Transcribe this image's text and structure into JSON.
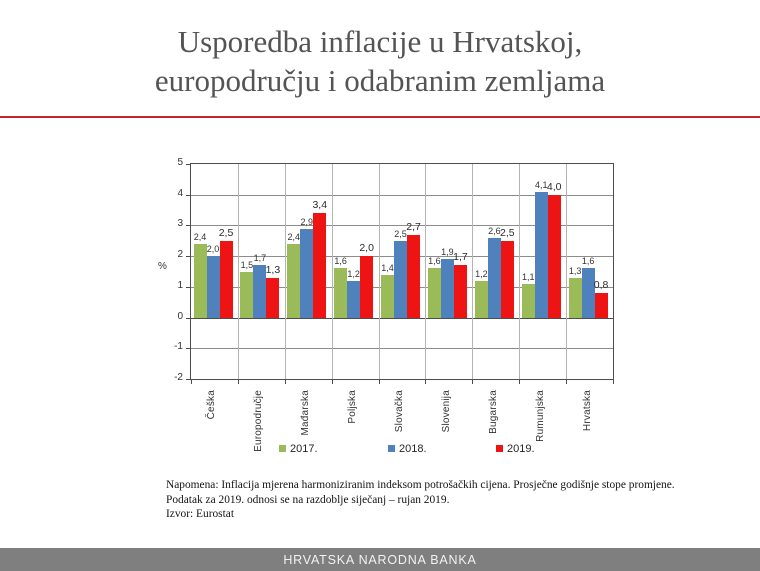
{
  "slide": {
    "title_line1": "Usporedba inflacije u Hrvatskoj,",
    "title_line2": "europodručju i odabranim zemljama",
    "footer_bar_text": "HRVATSKA NARODNA BANKA"
  },
  "notes": {
    "line1": "Napomena: Inflacija mjerena  harmoniziranim indeksom potrošačkih cijena. Prosječne godišnje stope promjene.",
    "line2": "Podatak za 2019. odnosi se na razdoblje siječanj – rujan 2019.",
    "line3": "Izvor: Eurostat"
  },
  "colors": {
    "series_2017": "#9BBB59",
    "series_2018": "#4F81BD",
    "series_2019": "#EE1414",
    "divider_red": "#BE282D",
    "footer_bg": "#7F7F7F",
    "title_gray": "#545454"
  },
  "chart_data": {
    "type": "bar",
    "title": "",
    "xlabel": "",
    "ylabel": "%",
    "ylim": [
      -2,
      5
    ],
    "ytick_step": 1,
    "grid": true,
    "legend_position": "bottom",
    "decimal_separator": ",",
    "categories": [
      "Češka",
      "Europodručje",
      "Mađarska",
      "Poljska",
      "Slovačka",
      "Slovenija",
      "Bugarska",
      "Rumunjska",
      "Hrvatska"
    ],
    "series": [
      {
        "name": "2017.",
        "color_key": "series_2017",
        "values": [
          2.4,
          1.5,
          2.4,
          1.6,
          1.4,
          1.6,
          1.2,
          1.1,
          1.3
        ]
      },
      {
        "name": "2018.",
        "color_key": "series_2018",
        "values": [
          2.0,
          1.7,
          2.9,
          1.2,
          2.5,
          1.9,
          2.6,
          4.1,
          1.6
        ]
      },
      {
        "name": "2019.",
        "color_key": "series_2019",
        "values": [
          2.5,
          1.3,
          3.4,
          2.0,
          2.7,
          1.7,
          2.5,
          4.0,
          0.8
        ]
      }
    ]
  }
}
